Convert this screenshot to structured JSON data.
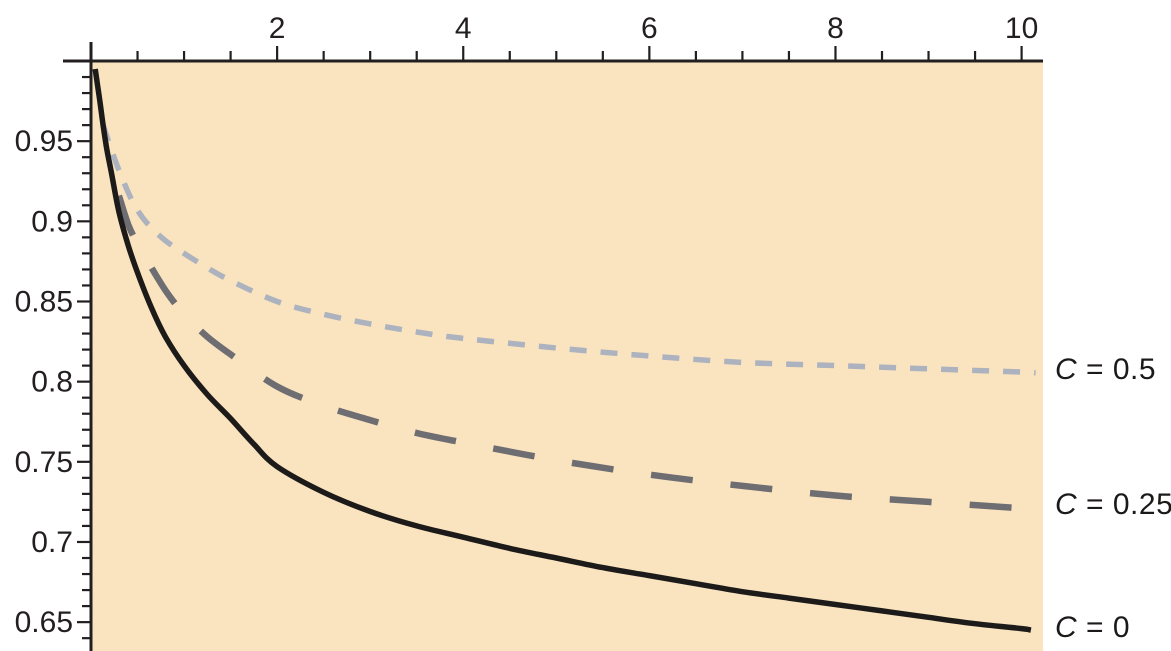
{
  "chart_data": {
    "type": "line",
    "title": "",
    "xlabel": "",
    "ylabel": "",
    "grid": false,
    "plot_background_color": "#fae4bf",
    "outer_background_color": "#ffffff",
    "axis_color": "#231f20",
    "x_axis": {
      "position": "top",
      "min": 0,
      "max": 10.23,
      "major_ticks": [
        2,
        4,
        6,
        8,
        10
      ],
      "major_tick_labels": [
        "2",
        "4",
        "6",
        "8",
        "10"
      ],
      "minor_tick_step": 0.5
    },
    "y_axis": {
      "position": "left",
      "min": 0.632,
      "max": 1.0,
      "major_ticks": [
        0.95,
        0.9,
        0.85,
        0.8,
        0.75,
        0.7,
        0.65
      ],
      "major_tick_labels": [
        "0.95",
        "0.9",
        "0.85",
        "0.8",
        "0.75",
        "0.7",
        "0.65"
      ],
      "minor_tick_step": 0.01,
      "minor_tick_range": [
        0.64,
        0.99
      ]
    },
    "legend_position": "right-of-curve-ends",
    "series": [
      {
        "name": "C = 0.5",
        "label_var": "C",
        "label_rest": " = 0.5",
        "style": "short-dash",
        "color": "#adb2bf",
        "label_y": 0.806,
        "points": [
          [
            0.13,
            0.96
          ],
          [
            0.2,
            0.948
          ],
          [
            0.3,
            0.932
          ],
          [
            0.45,
            0.912
          ],
          [
            0.6,
            0.899
          ],
          [
            0.8,
            0.888
          ],
          [
            1.0,
            0.88
          ],
          [
            1.25,
            0.871
          ],
          [
            1.5,
            0.863
          ],
          [
            2.0,
            0.85
          ],
          [
            2.5,
            0.842
          ],
          [
            3.0,
            0.836
          ],
          [
            3.5,
            0.831
          ],
          [
            4.0,
            0.827
          ],
          [
            5.0,
            0.821
          ],
          [
            6.0,
            0.816
          ],
          [
            7.0,
            0.812
          ],
          [
            8.0,
            0.81
          ],
          [
            9.0,
            0.808
          ],
          [
            10.0,
            0.806
          ],
          [
            10.15,
            0.8055
          ]
        ]
      },
      {
        "name": "C = 0.25",
        "label_var": "C",
        "label_rest": " = 0.25",
        "style": "long-dash",
        "color": "#6e6d72",
        "label_y": 0.722,
        "points": [
          [
            0.3,
            0.916
          ],
          [
            0.4,
            0.898
          ],
          [
            0.5,
            0.886
          ],
          [
            0.6,
            0.876
          ],
          [
            0.8,
            0.857
          ],
          [
            1.0,
            0.842
          ],
          [
            1.25,
            0.828
          ],
          [
            1.5,
            0.817
          ],
          [
            2.0,
            0.797
          ],
          [
            2.5,
            0.785
          ],
          [
            3.0,
            0.776
          ],
          [
            3.5,
            0.768
          ],
          [
            4.0,
            0.762
          ],
          [
            5.0,
            0.751
          ],
          [
            6.0,
            0.742
          ],
          [
            7.0,
            0.735
          ],
          [
            8.0,
            0.729
          ],
          [
            9.0,
            0.725
          ],
          [
            10.0,
            0.721
          ],
          [
            10.15,
            0.7205
          ]
        ]
      },
      {
        "name": "C = 0",
        "label_var": "C",
        "label_rest": " = 0",
        "style": "solid",
        "color": "#1d1b19",
        "label_y": 0.645,
        "points": [
          [
            0.045,
            0.995
          ],
          [
            0.07,
            0.985
          ],
          [
            0.1,
            0.973
          ],
          [
            0.13,
            0.96
          ],
          [
            0.17,
            0.945
          ],
          [
            0.22,
            0.93
          ],
          [
            0.3,
            0.906
          ],
          [
            0.4,
            0.885
          ],
          [
            0.5,
            0.868
          ],
          [
            0.65,
            0.846
          ],
          [
            0.8,
            0.828
          ],
          [
            1.0,
            0.81
          ],
          [
            1.25,
            0.792
          ],
          [
            1.5,
            0.777
          ],
          [
            1.75,
            0.761
          ],
          [
            2.0,
            0.747
          ],
          [
            2.5,
            0.731
          ],
          [
            3.0,
            0.719
          ],
          [
            3.5,
            0.71
          ],
          [
            4.0,
            0.703
          ],
          [
            4.5,
            0.696
          ],
          [
            5.0,
            0.69
          ],
          [
            5.5,
            0.684
          ],
          [
            6.0,
            0.679
          ],
          [
            6.5,
            0.674
          ],
          [
            7.0,
            0.669
          ],
          [
            7.5,
            0.665
          ],
          [
            8.0,
            0.661
          ],
          [
            8.5,
            0.657
          ],
          [
            9.0,
            0.653
          ],
          [
            9.5,
            0.649
          ],
          [
            10.0,
            0.646
          ],
          [
            10.1,
            0.645
          ]
        ]
      }
    ]
  }
}
